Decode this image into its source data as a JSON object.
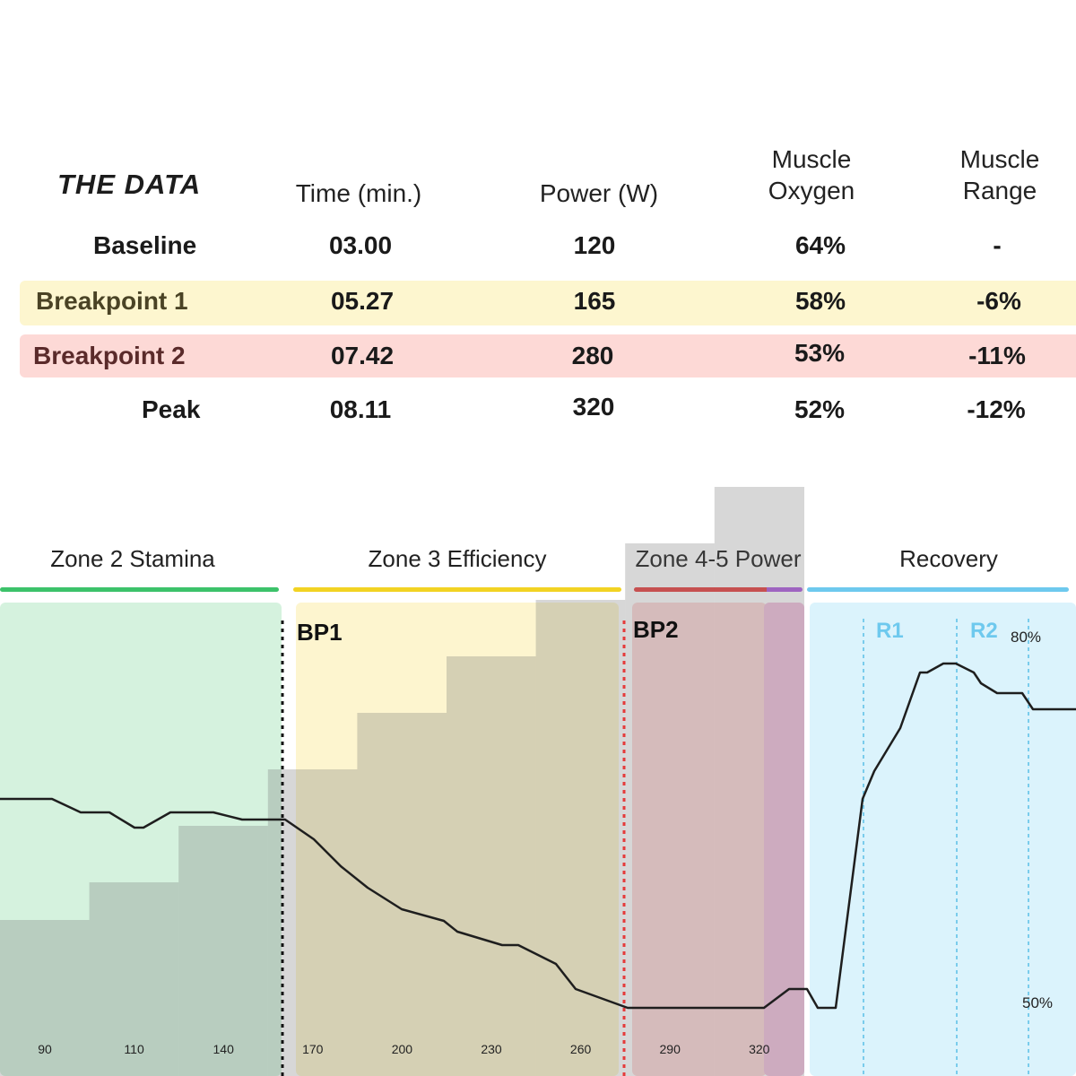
{
  "table": {
    "title": "THE DATA",
    "headers": {
      "time": "Time (min.)",
      "power": "Power (W)",
      "oxygen": [
        "Muscle",
        "Oxygen"
      ],
      "range": [
        "Muscle",
        "Range"
      ]
    },
    "rows": [
      {
        "label": "Baseline",
        "time": "03.00",
        "power": "120",
        "oxygen": "64%",
        "range": "-"
      },
      {
        "label": "Breakpoint 1",
        "time": "05.27",
        "power": "165",
        "oxygen": "58%",
        "range": "-6%"
      },
      {
        "label": "Breakpoint 2",
        "time": "07.42",
        "power": "280",
        "oxygen": "53%",
        "range": "-11%"
      },
      {
        "label": "Peak",
        "time": "08.11",
        "power": "320",
        "oxygen": "52%",
        "range": "-12%"
      }
    ]
  },
  "colors": {
    "zone2": "#3cc26a",
    "zone3": "#f2d323",
    "zone45_red": "#e84545",
    "zone45_purple": "#b060e0",
    "recovery": "#6ec9ee",
    "bp1_row": "#fdf6cf",
    "bp2_row": "#fdd9d6",
    "bp1_text": "#4a4325",
    "bp2_text": "#5a2a2a"
  },
  "chart_data": {
    "type": "area",
    "zones": [
      {
        "name": "Zone 2 Stamina"
      },
      {
        "name": "Zone 3 Efficiency"
      },
      {
        "name": "Zone 4-5 Power"
      },
      {
        "name": "Recovery"
      }
    ],
    "markers": [
      {
        "label": "BP1"
      },
      {
        "label": "BP2"
      },
      {
        "label": "R1"
      },
      {
        "label": "R2"
      }
    ],
    "power_steps": {
      "x_tick_labels": [
        "90",
        "110",
        "140",
        "170",
        "200",
        "230",
        "260",
        "290",
        "320"
      ],
      "values": [
        90,
        110,
        140,
        170,
        200,
        230,
        260,
        290,
        320
      ]
    },
    "muscle_oxygen": {
      "y_tick_labels": [
        "80%",
        "50%"
      ],
      "ylim_labels": [
        50,
        80
      ]
    }
  }
}
